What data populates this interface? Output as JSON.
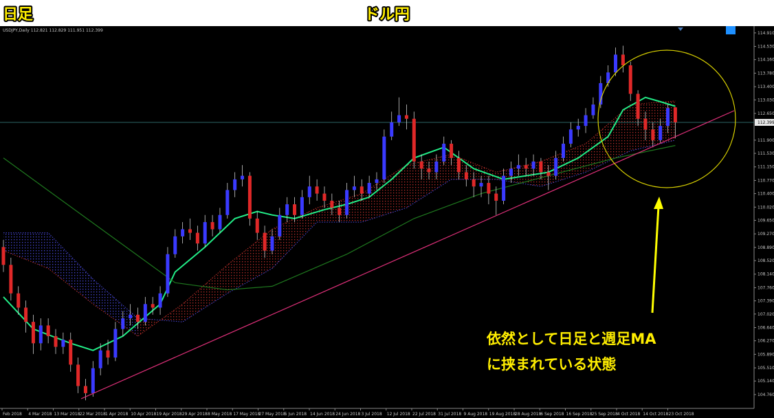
{
  "header": {
    "left": "日足",
    "center": "ドル円"
  },
  "annotation": [
    "依然として日足と週足MA",
    "に挟まれている状態"
  ],
  "chart_data": {
    "type": "candlestick",
    "symbol": "USDJPY,Daily",
    "up_color": "#3a3aff",
    "down_color": "#e02828",
    "open": [
      108.9,
      108.4,
      107.6,
      107.2,
      106.8,
      106.2,
      106.7,
      106.4,
      106.1,
      106.3,
      105.6,
      105.0,
      104.8,
      105.5,
      106.0,
      105.8,
      106.6,
      106.9,
      107.0,
      106.8,
      107.3,
      107.2,
      107.6,
      108.7,
      109.2,
      109.4,
      109.3,
      109.0,
      109.6,
      109.4,
      109.8,
      110.5,
      110.8,
      110.9,
      109.7,
      109.3,
      108.8,
      109.2,
      109.8,
      110.1,
      109.8,
      110.3,
      110.6,
      110.4,
      110.2,
      110.0,
      109.8,
      110.5,
      110.6,
      110.4,
      110.7,
      110.8,
      112.0,
      112.4,
      112.6,
      112.5,
      111.3,
      111.1,
      111.0,
      111.3,
      111.8,
      111.4,
      111.0,
      110.8,
      110.6,
      110.7,
      110.4,
      110.2,
      110.9,
      111.1,
      111.2,
      111.1,
      111.3,
      111.0,
      110.9,
      111.4,
      111.8,
      112.2,
      112.3,
      112.6,
      112.9,
      113.5,
      113.8,
      114.3,
      114.0,
      113.2,
      112.5,
      112.2,
      111.9,
      112.3,
      112.821
    ],
    "high": [
      109.1,
      108.6,
      107.8,
      107.4,
      107.0,
      106.9,
      106.9,
      106.6,
      106.5,
      106.5,
      105.8,
      105.2,
      105.7,
      106.2,
      106.3,
      106.8,
      107.1,
      107.3,
      107.2,
      107.5,
      107.5,
      107.8,
      108.9,
      109.4,
      109.6,
      109.7,
      109.5,
      109.8,
      109.8,
      110.0,
      110.7,
      111.0,
      111.2,
      111.0,
      109.9,
      109.5,
      109.4,
      110.0,
      110.3,
      110.3,
      110.5,
      110.9,
      110.8,
      110.6,
      110.4,
      110.2,
      110.7,
      110.9,
      110.8,
      110.9,
      111.0,
      112.2,
      112.7,
      113.1,
      112.9,
      112.7,
      111.5,
      111.3,
      111.5,
      112.0,
      111.9,
      111.6,
      111.2,
      111.0,
      110.9,
      110.9,
      110.6,
      111.1,
      111.3,
      111.5,
      111.4,
      111.5,
      111.4,
      111.2,
      111.6,
      112.0,
      112.4,
      112.5,
      112.8,
      113.1,
      113.7,
      114.0,
      114.5,
      114.55,
      114.1,
      113.3,
      112.7,
      112.4,
      112.5,
      112.9,
      112.829
    ],
    "low": [
      108.2,
      107.4,
      107.0,
      106.5,
      105.9,
      106.0,
      106.2,
      105.9,
      105.9,
      105.4,
      104.8,
      104.6,
      104.7,
      105.3,
      105.6,
      105.7,
      106.4,
      106.7,
      106.6,
      106.7,
      107.0,
      107.0,
      107.5,
      108.6,
      109.0,
      109.1,
      108.8,
      108.9,
      109.2,
      109.3,
      109.7,
      110.3,
      110.6,
      109.5,
      109.1,
      108.6,
      108.7,
      109.1,
      109.6,
      109.6,
      109.7,
      110.1,
      110.2,
      110.0,
      109.8,
      109.6,
      109.7,
      110.3,
      110.2,
      110.3,
      110.5,
      110.7,
      111.9,
      112.3,
      112.2,
      111.1,
      110.8,
      110.8,
      110.8,
      111.2,
      111.2,
      110.8,
      110.6,
      110.3,
      110.3,
      110.1,
      109.8,
      110.1,
      110.7,
      110.9,
      110.9,
      110.9,
      110.8,
      110.5,
      110.8,
      111.3,
      111.7,
      112.0,
      112.1,
      112.5,
      112.8,
      113.4,
      113.7,
      113.8,
      113.0,
      112.3,
      111.9,
      111.7,
      111.8,
      112.1,
      111.951
    ],
    "close": [
      108.4,
      107.6,
      107.2,
      106.8,
      106.2,
      106.7,
      106.4,
      106.1,
      106.3,
      105.6,
      105.0,
      104.8,
      105.5,
      106.0,
      105.8,
      106.6,
      106.9,
      107.0,
      106.8,
      107.3,
      107.2,
      107.6,
      108.7,
      109.2,
      109.4,
      109.3,
      109.0,
      109.6,
      109.4,
      109.8,
      110.5,
      110.8,
      110.9,
      109.7,
      109.3,
      108.8,
      109.2,
      109.8,
      110.1,
      109.8,
      110.3,
      110.6,
      110.4,
      110.2,
      110.0,
      109.8,
      110.5,
      110.6,
      110.4,
      110.7,
      110.8,
      112.0,
      112.4,
      112.6,
      112.5,
      111.3,
      111.1,
      111.0,
      111.3,
      111.8,
      111.4,
      111.0,
      110.8,
      110.6,
      110.7,
      110.4,
      110.2,
      110.9,
      111.1,
      111.2,
      111.1,
      111.3,
      111.0,
      110.9,
      111.4,
      111.8,
      112.2,
      112.3,
      112.6,
      112.9,
      113.5,
      113.8,
      114.3,
      114.0,
      113.2,
      112.5,
      112.2,
      111.9,
      112.3,
      112.8,
      112.399
    ],
    "lines": [
      {
        "color": "#22ee88",
        "x": [
          0,
          4,
          9,
          12,
          16,
          21,
          23,
          27,
          31,
          34,
          36,
          39,
          43,
          46,
          49,
          52,
          55,
          59,
          63,
          67,
          70,
          73,
          77,
          81,
          83,
          86,
          88,
          90
        ],
        "values": [
          107.5,
          106.6,
          106.2,
          106.0,
          106.4,
          107.3,
          108.2,
          108.9,
          109.7,
          109.9,
          109.8,
          109.7,
          109.95,
          110.1,
          110.3,
          110.8,
          111.4,
          111.7,
          111.1,
          110.8,
          110.9,
          111.0,
          111.4,
          112.0,
          112.75,
          113.1,
          112.98,
          112.85
        ]
      },
      {
        "color": "#1f7a1f",
        "x": [
          0,
          23,
          30,
          36,
          46,
          55,
          64,
          73,
          82,
          90
        ],
        "values": [
          111.4,
          107.9,
          107.7,
          107.8,
          108.7,
          109.7,
          110.4,
          110.9,
          111.4,
          111.75
        ]
      }
    ],
    "cloud": {
      "x": [
        0,
        6,
        12,
        18,
        24,
        30,
        36,
        42,
        48,
        54,
        60,
        66,
        72,
        78,
        84,
        90
      ],
      "span_a": {
        "color": "#c0302a",
        "values": [
          108.8,
          108.3,
          107.3,
          106.4,
          107.3,
          108.4,
          109.4,
          110.0,
          110.4,
          111.2,
          111.5,
          111.0,
          111.3,
          111.8,
          112.9,
          113.0
        ]
      },
      "span_b": {
        "color": "#4a4ae0",
        "values": [
          109.3,
          109.3,
          108.0,
          106.9,
          106.8,
          107.6,
          108.3,
          109.6,
          109.6,
          110.0,
          110.8,
          110.8,
          110.6,
          111.0,
          111.6,
          111.9
        ]
      }
    },
    "current_price_color": "#2c6666",
    "ylim": [
      104.45,
      115.1
    ],
    "yticks": [
      {
        "value": 114.91,
        "label": "114.910"
      },
      {
        "value": 114.53,
        "label": "114.530"
      },
      {
        "value": 114.16,
        "label": "114.160"
      },
      {
        "value": 113.78,
        "label": "113.780"
      },
      {
        "value": 113.4,
        "label": "113.400"
      },
      {
        "value": 113.03,
        "label": "113.030"
      },
      {
        "value": 112.65,
        "label": "112.650"
      },
      {
        "value": 111.9,
        "label": "111.900"
      },
      {
        "value": 111.53,
        "label": "111.530"
      },
      {
        "value": 111.15,
        "label": "111.150"
      },
      {
        "value": 110.77,
        "label": "110.770"
      },
      {
        "value": 110.4,
        "label": "110.400"
      },
      {
        "value": 110.02,
        "label": "110.020"
      },
      {
        "value": 109.65,
        "label": "109.650"
      },
      {
        "value": 109.27,
        "label": "109.270"
      },
      {
        "value": 108.89,
        "label": "108.890"
      },
      {
        "value": 108.52,
        "label": "108.520"
      },
      {
        "value": 108.14,
        "label": "108.140"
      },
      {
        "value": 107.76,
        "label": "107.760"
      },
      {
        "value": 107.39,
        "label": "107.390"
      },
      {
        "value": 107.02,
        "label": "107.020"
      },
      {
        "value": 106.64,
        "label": "106.640"
      },
      {
        "value": 106.27,
        "label": "106.270"
      },
      {
        "value": 105.89,
        "label": "105.890"
      },
      {
        "value": 105.51,
        "label": "105.510"
      },
      {
        "value": 105.14,
        "label": "105.140"
      },
      {
        "value": 104.76,
        "label": "104.760"
      }
    ],
    "xtick_labels": [
      "Feb 2018",
      "4 Mar 2018",
      "13 Mar 2018",
      "22 Mar 2018",
      "1 Apr 2018",
      "10 Apr 2018",
      "19 Apr 2018",
      "29 Apr 2018",
      "8 May 2018",
      "17 May 2018",
      "27 May 2018",
      "5 Jun 2018",
      "14 Jun 2018",
      "24 Jun 2018",
      "3 Jul 2018",
      "12 Jul 2018",
      "22 Jul 2018",
      "31 Jul 2018",
      "9 Aug 2018",
      "19 Aug 2018",
      "28 Aug 2018",
      "6 Sep 2018",
      "16 Sep 2018",
      "25 Sep 2018",
      "4 Oct 2018",
      "14 Oct 2018",
      "23 Oct 2018"
    ]
  }
}
